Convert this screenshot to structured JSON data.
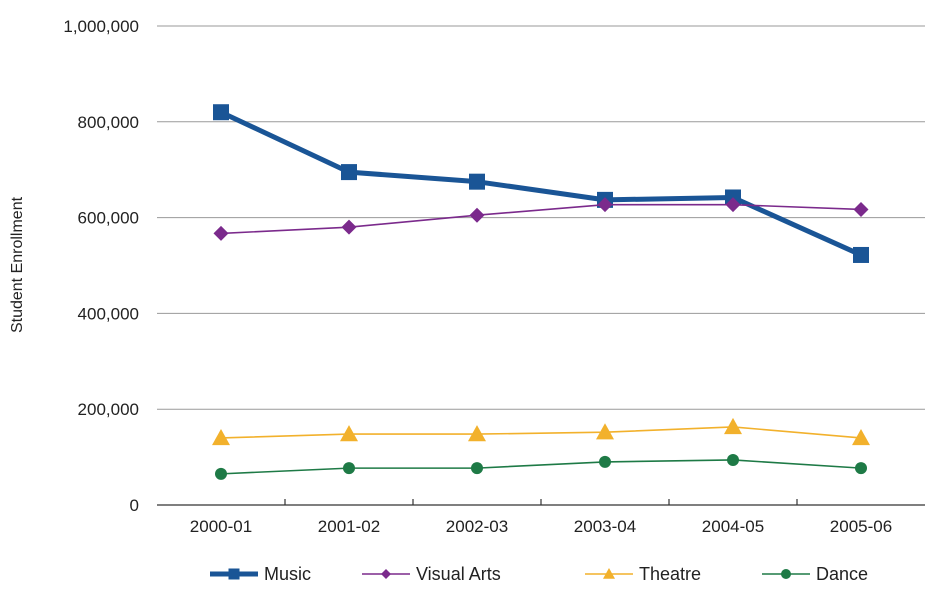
{
  "chart_data": {
    "type": "line",
    "title": "",
    "xlabel": "",
    "ylabel": "Student Enrollment",
    "categories": [
      "2000-01",
      "2001-02",
      "2002-03",
      "2003-04",
      "2004-05",
      "2005-06"
    ],
    "ylim": [
      0,
      1000000
    ],
    "yticks": [
      {
        "value": 0,
        "label": "0"
      },
      {
        "value": 200000,
        "label": "200,000"
      },
      {
        "value": 400000,
        "label": "400,000"
      },
      {
        "value": 600000,
        "label": "600,000"
      },
      {
        "value": 800000,
        "label": "800,000"
      },
      {
        "value": 1000000,
        "label": "1,000,000"
      }
    ],
    "grid": true,
    "legend_position": "bottom",
    "series": [
      {
        "name": "Music",
        "color": "#1a5596",
        "marker": "square",
        "values": [
          820000,
          695000,
          675000,
          637000,
          642000,
          522000
        ]
      },
      {
        "name": "Visual Arts",
        "color": "#7b2a8c",
        "marker": "diamond",
        "values": [
          567000,
          580000,
          605000,
          627000,
          627000,
          617000
        ]
      },
      {
        "name": "Theatre",
        "color": "#f2b12c",
        "marker": "triangle",
        "values": [
          140000,
          148000,
          148000,
          152000,
          163000,
          140000
        ]
      },
      {
        "name": "Dance",
        "color": "#1e7a46",
        "marker": "circle",
        "values": [
          65000,
          77000,
          77000,
          90000,
          94000,
          77000
        ]
      }
    ]
  }
}
